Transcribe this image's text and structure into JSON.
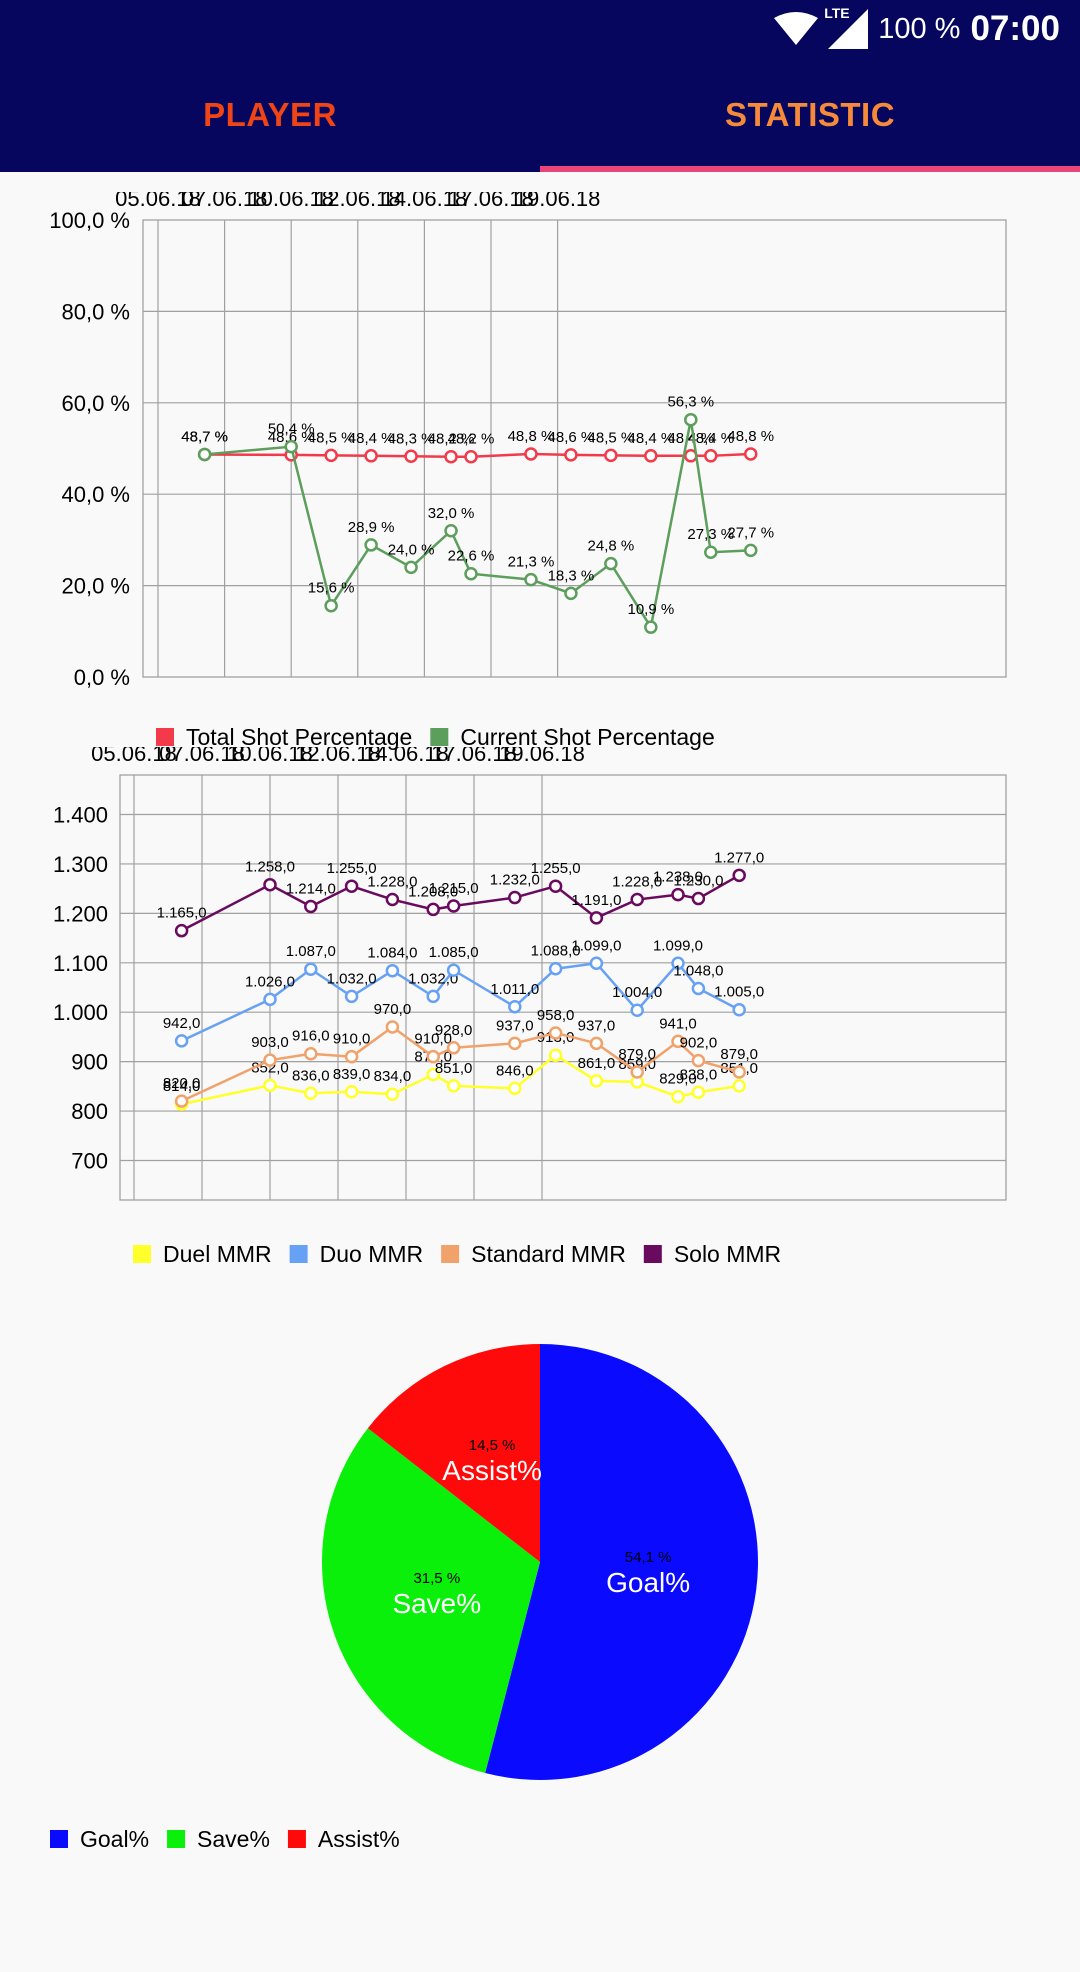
{
  "status_bar": {
    "network": "LTE",
    "battery": "100 %",
    "time": "07:00"
  },
  "tabs": [
    {
      "label": "PLAYER",
      "color": "#ef4416",
      "active": false
    },
    {
      "label": "STATISTIC",
      "color": "#f58a3a",
      "active": true
    }
  ],
  "chart_data": [
    {
      "type": "line",
      "x": [
        "05.06.18",
        "07.06.18",
        "10.06.18",
        "12.06.18",
        "14.06.18",
        "17.06.18",
        "19.06.18"
      ],
      "ylim": [
        0,
        100
      ],
      "yticks": [
        "0,0 %",
        "20,0 %",
        "40,0 %",
        "60,0 %",
        "80,0 %",
        "100,0 %"
      ],
      "grid": true,
      "legend_position": "bottom-left",
      "series": [
        {
          "name": "Total Shot Percentage",
          "color": "#f23a4a",
          "points": [
            [
              0.7,
              48.7
            ],
            [
              2.0,
              48.6
            ],
            [
              2.6,
              48.5
            ],
            [
              3.2,
              48.4
            ],
            [
              3.8,
              48.3
            ],
            [
              4.4,
              48.2
            ],
            [
              4.7,
              48.2
            ],
            [
              5.6,
              48.8
            ],
            [
              6.2,
              48.6
            ],
            [
              6.8,
              48.5
            ],
            [
              7.4,
              48.4
            ],
            [
              8.0,
              48.4
            ],
            [
              8.3,
              48.4
            ],
            [
              8.9,
              48.8
            ]
          ],
          "labels": [
            "48,7 %",
            "48,6 %",
            "48,5 %",
            "48,4 %",
            "48,3 %",
            "48,2 %",
            "48,2 %",
            "48,8 %",
            "48,6 %",
            "48,5 %",
            "48,4 %",
            "48,4 %",
            "48,4 %",
            "48,8 %"
          ]
        },
        {
          "name": "Current Shot Percentage",
          "color": "#5c9e5c",
          "points": [
            [
              0.7,
              48.7
            ],
            [
              2.0,
              50.4
            ],
            [
              2.6,
              15.6
            ],
            [
              3.2,
              28.9
            ],
            [
              3.8,
              24.0
            ],
            [
              4.4,
              32.0
            ],
            [
              4.7,
              22.6
            ],
            [
              5.6,
              21.3
            ],
            [
              6.2,
              18.3
            ],
            [
              6.8,
              24.8
            ],
            [
              7.4,
              10.9
            ],
            [
              8.0,
              56.3
            ],
            [
              8.3,
              27.3
            ],
            [
              8.9,
              27.7
            ]
          ],
          "labels": [
            "48,7 %",
            "50,4 %",
            "15,6 %",
            "28,9 %",
            "24,0 %",
            "32,0 %",
            "22,6 %",
            "21,3 %",
            "18,3 %",
            "24,8 %",
            "10,9 %",
            "56,3 %",
            "27,3 %",
            "27,7 %"
          ]
        }
      ]
    },
    {
      "type": "line",
      "x": [
        "05.06.18",
        "07.06.18",
        "10.06.18",
        "12.06.18",
        "14.06.18",
        "17.06.18",
        "19.06.18"
      ],
      "ylim": [
        620,
        1480
      ],
      "yticks": [
        "700",
        "800",
        "900",
        "1.000",
        "1.100",
        "1.200",
        "1.300",
        "1.400"
      ],
      "grid": true,
      "legend_position": "bottom-left",
      "series": [
        {
          "name": "Duel MMR",
          "color": "#ffff2a",
          "points": [
            [
              0.7,
              814
            ],
            [
              2.0,
              852
            ],
            [
              2.6,
              836
            ],
            [
              3.2,
              839
            ],
            [
              3.8,
              834
            ],
            [
              4.4,
              874
            ],
            [
              4.7,
              851
            ],
            [
              5.6,
              846
            ],
            [
              6.2,
              913
            ],
            [
              6.8,
              861
            ],
            [
              7.4,
              859
            ],
            [
              8.0,
              829
            ],
            [
              8.3,
              838
            ],
            [
              8.9,
              851
            ]
          ],
          "labels": [
            "814,0",
            "852,0",
            "836,0",
            "839,0",
            "834,0",
            "874,0",
            "851,0",
            "846,0",
            "913,0",
            "861,0",
            "859,0",
            "829,0",
            "838,0",
            "851,0"
          ]
        },
        {
          "name": "Duo MMR",
          "color": "#67a1f5",
          "points": [
            [
              0.7,
              942
            ],
            [
              2.0,
              1026
            ],
            [
              2.6,
              1087
            ],
            [
              3.2,
              1032
            ],
            [
              3.8,
              1084
            ],
            [
              4.4,
              1032
            ],
            [
              4.7,
              1085
            ],
            [
              5.6,
              1011
            ],
            [
              6.2,
              1088
            ],
            [
              6.8,
              1099
            ],
            [
              7.4,
              1004
            ],
            [
              8.0,
              1099
            ],
            [
              8.3,
              1048
            ],
            [
              8.9,
              1005
            ]
          ],
          "labels": [
            "942,0",
            "1.026,0",
            "1.087,0",
            "1.032,0",
            "1.084,0",
            "1.032,0",
            "1.085,0",
            "1.011,0",
            "1.088,0",
            "1.099,0",
            "1.004,0",
            "1.099,0",
            "1.048,0",
            "1.005,0"
          ]
        },
        {
          "name": "Standard MMR",
          "color": "#f1a16a",
          "points": [
            [
              0.7,
              820
            ],
            [
              2.0,
              903
            ],
            [
              2.6,
              916
            ],
            [
              3.2,
              910
            ],
            [
              3.8,
              970
            ],
            [
              4.4,
              910
            ],
            [
              4.7,
              928
            ],
            [
              5.6,
              937
            ],
            [
              6.2,
              958
            ],
            [
              6.8,
              937
            ],
            [
              7.4,
              879
            ],
            [
              8.0,
              941
            ],
            [
              8.3,
              902
            ],
            [
              8.9,
              879
            ]
          ],
          "labels": [
            "820,0",
            "903,0",
            "916,0",
            "910,0",
            "970,0",
            "910,0",
            "928,0",
            "937,0",
            "958,0",
            "937,0",
            "879,0",
            "941,0",
            "902,0",
            "879,0"
          ]
        },
        {
          "name": "Solo MMR",
          "color": "#6a0a5f",
          "points": [
            [
              0.7,
              1165
            ],
            [
              2.0,
              1258
            ],
            [
              2.6,
              1214
            ],
            [
              3.2,
              1255
            ],
            [
              3.8,
              1228
            ],
            [
              4.4,
              1208
            ],
            [
              4.7,
              1215
            ],
            [
              5.6,
              1232
            ],
            [
              6.2,
              1255
            ],
            [
              6.8,
              1191
            ],
            [
              7.4,
              1228
            ],
            [
              8.0,
              1238
            ],
            [
              8.3,
              1230
            ],
            [
              8.9,
              1277
            ]
          ],
          "labels": [
            "1.165,0",
            "1.258,0",
            "1.214,0",
            "1.255,0",
            "1.228,0",
            "1.208,0",
            "1.215,0",
            "1.232,0",
            "1.255,0",
            "1.191,0",
            "1.228,0",
            "1.238,0",
            "1.230,0",
            "1.277,0"
          ]
        }
      ]
    },
    {
      "type": "pie",
      "legend_position": "bottom-left",
      "slices": [
        {
          "name": "Goal%",
          "value": 54.1,
          "label": "54,1 %",
          "color": "#0a0aff"
        },
        {
          "name": "Save%",
          "value": 31.5,
          "label": "31,5 %",
          "color": "#0af00a"
        },
        {
          "name": "Assist%",
          "value": 14.5,
          "label": "14,5 %",
          "color": "#ff0a0a"
        }
      ]
    }
  ]
}
